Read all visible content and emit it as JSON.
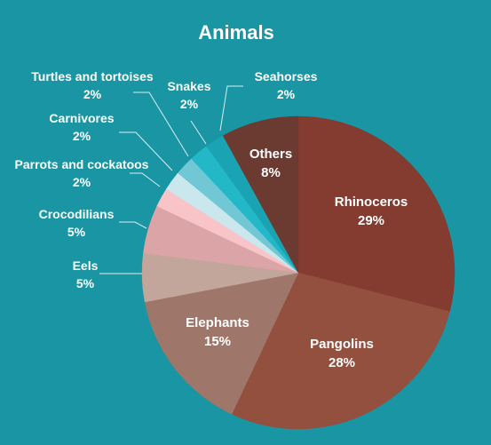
{
  "chart_data": {
    "type": "pie",
    "title": "Animals",
    "categories": [
      "Rhinoceros",
      "Pangolins",
      "Elephants",
      "Eels",
      "Crocodilians",
      "Parrots and cockatoos",
      "Carnivores",
      "Turtles and tortoises",
      "Snakes",
      "Seahorses",
      "Others"
    ],
    "values": [
      29,
      28,
      15,
      5,
      5,
      2,
      2,
      2,
      2,
      2,
      8
    ],
    "value_labels": [
      "29%",
      "28%",
      "15%",
      "5%",
      "5%",
      "2%",
      "2%",
      "2%",
      "2%",
      "2%",
      "8%"
    ],
    "unit": "%",
    "colors": [
      "#843c30",
      "#94503f",
      "#9f766a",
      "#c2a59b",
      "#dba4a6",
      "#f8c4c7",
      "#cbe7ee",
      "#72c7d4",
      "#22b8c8",
      "#1aa3b2",
      "#6b3a31"
    ],
    "legend": "none"
  }
}
